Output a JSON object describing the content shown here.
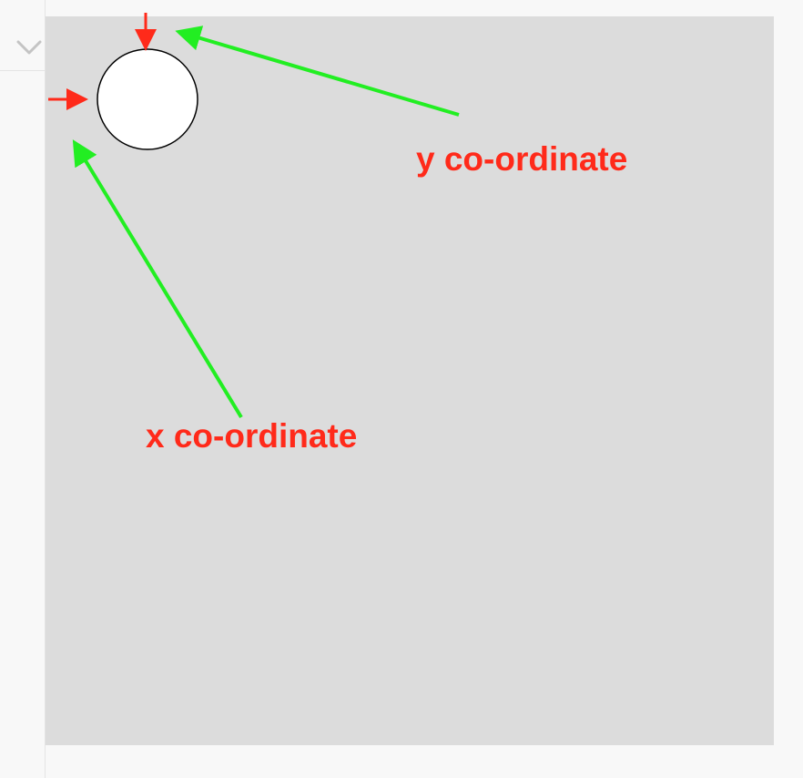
{
  "colors": {
    "canvas_bg": "#dcdcdc",
    "page_bg": "#f8f8f8",
    "pointer_arrow": "#ff2a1a",
    "callout_arrow": "#22ee22",
    "label_text": "#ff2a1a",
    "circle_fill": "#ffffff",
    "circle_stroke": "#000000"
  },
  "sidebar": {
    "toggle_icon": "chevron-down-icon"
  },
  "annotations": {
    "y_label": "y co-ordinate",
    "x_label": "x co-ordinate"
  }
}
